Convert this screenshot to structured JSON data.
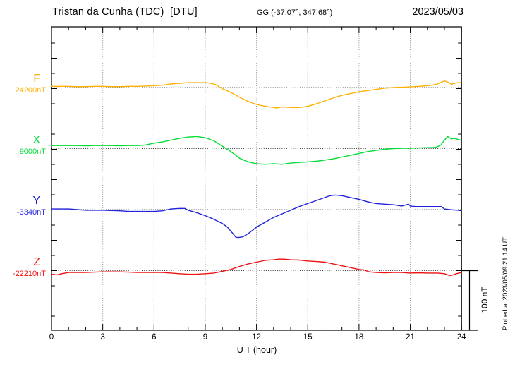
{
  "header": {
    "title": "Tristan da Cunha (TDC)  [DTU]",
    "coords": "GG (-37.07°, 347.68°)",
    "date": "2023/05/03"
  },
  "footer": {
    "plotted_at": "Plotted at 2023/05/09 21:14 UT"
  },
  "chart_data": {
    "type": "line",
    "title": "Tristan da Cunha (TDC) [DTU] magnetogram 2023/05/03",
    "xlabel": "U T (hour)",
    "ylabel": "",
    "x_range": [
      0,
      24
    ],
    "x_ticks": [
      0,
      3,
      6,
      9,
      12,
      15,
      18,
      21,
      24
    ],
    "x_minor_tick_step_hours": 1,
    "grid": "dotted vertical lines every 3 h; dotted horizontal baseline per trace",
    "legend_position": "left",
    "scale_bar": {
      "label": "100 nT",
      "nT": 100
    },
    "points_unit": "offset in nT from the series baseline value",
    "series": [
      {
        "name": "F",
        "baseline_label": "24200nT",
        "baseline_nT": 24200,
        "color": "#ffaf00",
        "points": [
          [
            0,
            2
          ],
          [
            0.5,
            2
          ],
          [
            1,
            2
          ],
          [
            1.5,
            1.5
          ],
          [
            2,
            1.5
          ],
          [
            2.5,
            2
          ],
          [
            3,
            2
          ],
          [
            3.5,
            1.5
          ],
          [
            4,
            1.5
          ],
          [
            4.5,
            2
          ],
          [
            5,
            2
          ],
          [
            5.5,
            2.5
          ],
          [
            6,
            3
          ],
          [
            6.5,
            4
          ],
          [
            7,
            6
          ],
          [
            7.5,
            7
          ],
          [
            8,
            8
          ],
          [
            8.5,
            8
          ],
          [
            9,
            8
          ],
          [
            9.3,
            7
          ],
          [
            9.6,
            5
          ],
          [
            10,
            -2
          ],
          [
            10.5,
            -8
          ],
          [
            11,
            -16
          ],
          [
            11.5,
            -23
          ],
          [
            12,
            -28
          ],
          [
            12.5,
            -31
          ],
          [
            13,
            -33
          ],
          [
            13.2,
            -34
          ],
          [
            13.5,
            -32
          ],
          [
            14,
            -33
          ],
          [
            14.5,
            -33
          ],
          [
            15,
            -31
          ],
          [
            15.5,
            -27
          ],
          [
            16,
            -22
          ],
          [
            16.5,
            -17
          ],
          [
            17,
            -13
          ],
          [
            17.5,
            -10
          ],
          [
            18,
            -7
          ],
          [
            18.5,
            -5
          ],
          [
            19,
            -3
          ],
          [
            19.5,
            -1
          ],
          [
            20,
            0
          ],
          [
            20.5,
            0.5
          ],
          [
            21,
            1
          ],
          [
            21.5,
            2
          ],
          [
            22,
            3
          ],
          [
            22.3,
            4
          ],
          [
            22.6,
            6
          ],
          [
            23,
            11
          ],
          [
            23.2,
            9
          ],
          [
            23.4,
            5.5
          ],
          [
            23.6,
            7
          ],
          [
            23.8,
            8
          ],
          [
            24,
            8
          ]
        ]
      },
      {
        "name": "X",
        "baseline_label": "9000nT",
        "baseline_nT": 9000,
        "color": "#00dd33",
        "points": [
          [
            0,
            5
          ],
          [
            0.5,
            5
          ],
          [
            1,
            5
          ],
          [
            1.5,
            5
          ],
          [
            2,
            4.5
          ],
          [
            2.5,
            5
          ],
          [
            3,
            5
          ],
          [
            3.5,
            5
          ],
          [
            4,
            4.5
          ],
          [
            4.5,
            5
          ],
          [
            5,
            5
          ],
          [
            5.5,
            6
          ],
          [
            6,
            9
          ],
          [
            6.5,
            11
          ],
          [
            7,
            14
          ],
          [
            7.5,
            17
          ],
          [
            8,
            19
          ],
          [
            8.5,
            20
          ],
          [
            9,
            18
          ],
          [
            9.5,
            13
          ],
          [
            10,
            4
          ],
          [
            10.5,
            -5
          ],
          [
            11,
            -16
          ],
          [
            11.5,
            -22
          ],
          [
            12,
            -25
          ],
          [
            12.5,
            -26
          ],
          [
            13,
            -25
          ],
          [
            13.5,
            -26
          ],
          [
            14,
            -24
          ],
          [
            14.5,
            -23
          ],
          [
            15,
            -22
          ],
          [
            15.5,
            -21
          ],
          [
            16,
            -19
          ],
          [
            16.5,
            -17
          ],
          [
            17,
            -14
          ],
          [
            17.5,
            -11
          ],
          [
            18,
            -8
          ],
          [
            18.5,
            -5
          ],
          [
            19,
            -3
          ],
          [
            19.5,
            -1
          ],
          [
            20,
            0
          ],
          [
            20.5,
            0.5
          ],
          [
            21,
            0.5
          ],
          [
            21.5,
            1
          ],
          [
            22,
            1.5
          ],
          [
            22.5,
            2
          ],
          [
            22.8,
            6
          ],
          [
            23,
            14
          ],
          [
            23.2,
            20
          ],
          [
            23.4,
            16
          ],
          [
            23.6,
            17
          ],
          [
            23.8,
            15
          ],
          [
            24,
            13.5
          ]
        ]
      },
      {
        "name": "Y",
        "baseline_label": "-3340nT",
        "baseline_nT": -3340,
        "color": "#2222dd",
        "points": [
          [
            0,
            1
          ],
          [
            0.5,
            1
          ],
          [
            1,
            1
          ],
          [
            1.5,
            0
          ],
          [
            2,
            -1
          ],
          [
            2.5,
            -1
          ],
          [
            3,
            -1
          ],
          [
            3.5,
            -1.5
          ],
          [
            4,
            -2
          ],
          [
            4.5,
            -3
          ],
          [
            5,
            -3
          ],
          [
            5.5,
            -3
          ],
          [
            6,
            -3
          ],
          [
            6.5,
            -2
          ],
          [
            7,
            1
          ],
          [
            7.5,
            2
          ],
          [
            7.8,
            2
          ],
          [
            8,
            -1
          ],
          [
            8.5,
            -5
          ],
          [
            9,
            -10
          ],
          [
            9.5,
            -16
          ],
          [
            10,
            -23
          ],
          [
            10.3,
            -29
          ],
          [
            10.6,
            -39
          ],
          [
            10.8,
            -46
          ],
          [
            11,
            -46
          ],
          [
            11.2,
            -45
          ],
          [
            11.5,
            -40
          ],
          [
            12,
            -29
          ],
          [
            12.5,
            -21
          ],
          [
            13,
            -13
          ],
          [
            13.5,
            -7
          ],
          [
            14,
            -1
          ],
          [
            14.5,
            5
          ],
          [
            15,
            10
          ],
          [
            15.5,
            15
          ],
          [
            16,
            20
          ],
          [
            16.3,
            23
          ],
          [
            16.6,
            24
          ],
          [
            17,
            23
          ],
          [
            17.5,
            20
          ],
          [
            18,
            17
          ],
          [
            18.5,
            13
          ],
          [
            19,
            10
          ],
          [
            19.5,
            9
          ],
          [
            20,
            8
          ],
          [
            20.5,
            6
          ],
          [
            20.9,
            9
          ],
          [
            21,
            6
          ],
          [
            21.3,
            5
          ],
          [
            22,
            5
          ],
          [
            22.5,
            5
          ],
          [
            22.8,
            5
          ],
          [
            23,
            1
          ],
          [
            23.3,
            0
          ],
          [
            23.5,
            -0.5
          ],
          [
            23.8,
            -1
          ],
          [
            24,
            -2
          ]
        ]
      },
      {
        "name": "Z",
        "baseline_label": "-22210nT",
        "baseline_nT": -22210,
        "color": "#ee1111",
        "points": [
          [
            0,
            -6
          ],
          [
            0.3,
            -7
          ],
          [
            0.6,
            -5
          ],
          [
            1,
            -3
          ],
          [
            1.5,
            -3
          ],
          [
            2,
            -3
          ],
          [
            2.5,
            -2.5
          ],
          [
            3,
            -2
          ],
          [
            3.5,
            -2
          ],
          [
            4,
            -2
          ],
          [
            4.5,
            -2.5
          ],
          [
            5,
            -3
          ],
          [
            5.5,
            -3
          ],
          [
            6,
            -3
          ],
          [
            6.5,
            -3
          ],
          [
            7,
            -4
          ],
          [
            7.5,
            -5
          ],
          [
            8,
            -6
          ],
          [
            8.5,
            -6
          ],
          [
            9,
            -5
          ],
          [
            9.5,
            -4
          ],
          [
            10,
            -1
          ],
          [
            10.5,
            2
          ],
          [
            11,
            7
          ],
          [
            11.5,
            11
          ],
          [
            12,
            14
          ],
          [
            12.5,
            17
          ],
          [
            13,
            18
          ],
          [
            13.3,
            19
          ],
          [
            13.6,
            19
          ],
          [
            14,
            18
          ],
          [
            14.5,
            17.5
          ],
          [
            15,
            16
          ],
          [
            15.5,
            15
          ],
          [
            16,
            14
          ],
          [
            16.5,
            11
          ],
          [
            17,
            8
          ],
          [
            17.5,
            5
          ],
          [
            18,
            2
          ],
          [
            18.3,
            1
          ],
          [
            18.6,
            -2
          ],
          [
            19,
            -3
          ],
          [
            19.5,
            -3.5
          ],
          [
            20,
            -3
          ],
          [
            20.5,
            -3
          ],
          [
            21,
            -4
          ],
          [
            21.5,
            -3.5
          ],
          [
            22,
            -4
          ],
          [
            22.3,
            -4
          ],
          [
            22.6,
            -4
          ],
          [
            23,
            -5
          ],
          [
            23.3,
            -8
          ],
          [
            23.5,
            -7
          ],
          [
            23.7,
            -5
          ],
          [
            24,
            -3
          ]
        ]
      }
    ]
  }
}
